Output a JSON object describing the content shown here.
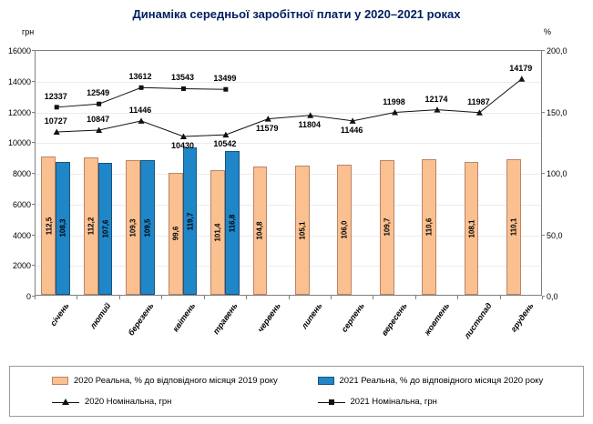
{
  "title": "Динаміка середньої заробітної плати у 2020–2021 роках",
  "axes": {
    "left_unit": "грн",
    "right_unit": "%",
    "left_ticks": [
      "0",
      "2000",
      "4000",
      "6000",
      "8000",
      "10000",
      "12000",
      "14000",
      "16000"
    ],
    "right_ticks": [
      "0,0",
      "50,0",
      "100,0",
      "150,0",
      "200,0"
    ]
  },
  "chart_data": {
    "type": "bar",
    "subtype": "combo bar+line, dual axis",
    "title": "Динаміка середньої заробітної плати у 2020–2021 роках",
    "categories": [
      "січень",
      "лютий",
      "березень",
      "квітень",
      "травень",
      "червень",
      "липень",
      "серпень",
      "вересень",
      "жовтень",
      "листопад",
      "грудень"
    ],
    "left_axis": {
      "label": "грн",
      "min": 0,
      "max": 16000,
      "step": 2000
    },
    "right_axis": {
      "label": "%",
      "min": 0,
      "max": 200,
      "step": 50
    },
    "grid": "faint horizontal",
    "legend_position": "bottom",
    "series": [
      {
        "name": "2020 Реальна, % до відповідного місяця 2019 року",
        "type": "bar",
        "axis": "right",
        "color": "#FAC090",
        "values": [
          112.5,
          112.2,
          109.3,
          99.6,
          101.4,
          104.8,
          105.1,
          106.0,
          109.7,
          110.6,
          108.1,
          110.1
        ],
        "labels": [
          "112,5",
          "112,2",
          "109,3",
          "99,6",
          "101,4",
          "104,8",
          "105,1",
          "106,0",
          "109,7",
          "110,6",
          "108,1",
          "110,1"
        ]
      },
      {
        "name": "2021 Реальна, % до відповідного місяця 2020 року",
        "type": "bar",
        "axis": "right",
        "color": "#1F86C8",
        "values": [
          108.3,
          107.6,
          109.5,
          119.7,
          116.8
        ],
        "labels": [
          "108,3",
          "107,6",
          "109,5",
          "119,7",
          "116,8"
        ]
      },
      {
        "name": "2020 Номінальна, грн",
        "type": "line",
        "axis": "left",
        "marker": "triangle",
        "color": "#111111",
        "values": [
          10727,
          10847,
          11446,
          10430,
          10542,
          11579,
          11804,
          11446,
          11998,
          12174,
          11987,
          14179
        ],
        "label_pos": [
          "above",
          "above",
          "above",
          "below",
          "below",
          "below",
          "below",
          "below",
          "above",
          "above",
          "above",
          "above"
        ]
      },
      {
        "name": "2021 Номінальна, грн",
        "type": "line",
        "axis": "left",
        "marker": "square",
        "color": "#111111",
        "values": [
          12337,
          12549,
          13612,
          13543,
          13499
        ],
        "label_pos": [
          "above",
          "above",
          "above",
          "above",
          "above"
        ]
      }
    ]
  }
}
